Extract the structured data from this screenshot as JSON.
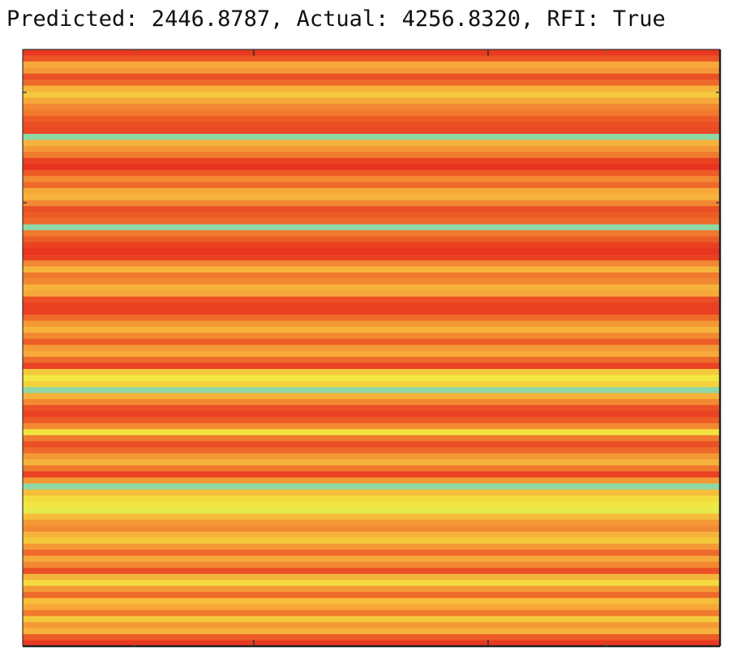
{
  "header": {
    "title": "Predicted: 2446.8787, Actual: 4256.8320, RFI: True"
  },
  "chart_data": {
    "type": "heatmap",
    "title": "Predicted: 2446.8787, Actual: 4256.8320, RFI: True",
    "xlabel": "",
    "ylabel": "",
    "grid": false,
    "colorscale": [
      "#e8331f",
      "#ee6a2a",
      "#f6a83a",
      "#f5d23c",
      "#f0ec42",
      "#8fd7a4"
    ],
    "colorscale_range": [
      0,
      1
    ],
    "rows": [
      0.02,
      0.12,
      0.4,
      0.35,
      0.1,
      0.2,
      0.45,
      0.55,
      0.4,
      0.3,
      0.25,
      0.15,
      0.1,
      0.08,
      1.0,
      0.45,
      0.35,
      0.25,
      0.05,
      0.0,
      0.15,
      0.3,
      0.2,
      0.4,
      0.45,
      0.3,
      0.1,
      0.15,
      0.2,
      1.0,
      0.25,
      0.15,
      0.05,
      0.0,
      0.05,
      0.3,
      0.45,
      0.25,
      0.3,
      0.45,
      0.4,
      0.1,
      0.05,
      0.05,
      0.2,
      0.35,
      0.45,
      0.3,
      0.15,
      0.35,
      0.4,
      0.2,
      0.05,
      0.55,
      0.78,
      0.6,
      1.0,
      0.45,
      0.3,
      0.1,
      0.05,
      0.15,
      0.3,
      0.72,
      0.25,
      0.1,
      0.2,
      0.35,
      0.45,
      0.25,
      0.05,
      0.35,
      1.0,
      0.5,
      0.68,
      0.75,
      0.82,
      0.5,
      0.35,
      0.3,
      0.45,
      0.55,
      0.35,
      0.2,
      0.4,
      0.3,
      0.1,
      0.45,
      0.65,
      0.35,
      0.2,
      0.5,
      0.4,
      0.25,
      0.55,
      0.35,
      0.45,
      0.15,
      0.02
    ]
  }
}
